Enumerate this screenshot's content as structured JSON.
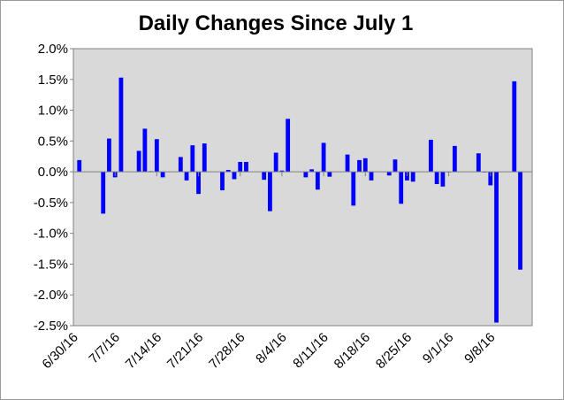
{
  "chart_data": {
    "type": "bar",
    "title": "Daily Changes Since July 1",
    "xlabel": "",
    "ylabel": "",
    "ylim": [
      -0.025,
      0.02
    ],
    "y_tick_labels": [
      "2.0%",
      "1.5%",
      "1.0%",
      "0.5%",
      "0.0%",
      "-0.5%",
      "-1.0%",
      "-1.5%",
      "-2.0%",
      "-2.5%"
    ],
    "x_tick_labels": [
      "6/30/16",
      "7/7/16",
      "7/14/16",
      "7/21/16",
      "7/28/16",
      "8/4/16",
      "8/11/16",
      "8/18/16",
      "8/25/16",
      "9/1/16",
      "9/8/16"
    ],
    "grid": false,
    "colors": {
      "bar": "#0000ff",
      "plot_bg": "#d9d9d9",
      "axis": "#808080"
    },
    "series": [
      {
        "points": [
          [
            "2016-07-01",
            0.0019
          ],
          [
            "2016-07-05",
            -0.0068
          ],
          [
            "2016-07-06",
            0.0054
          ],
          [
            "2016-07-07",
            -0.0009
          ],
          [
            "2016-07-08",
            0.0153
          ],
          [
            "2016-07-11",
            0.0034
          ],
          [
            "2016-07-12",
            0.007
          ],
          [
            "2016-07-13",
            0.0001
          ],
          [
            "2016-07-14",
            0.0053
          ],
          [
            "2016-07-15",
            -0.0009
          ],
          [
            "2016-07-18",
            0.0024
          ],
          [
            "2016-07-19",
            -0.0014
          ],
          [
            "2016-07-20",
            0.0043
          ],
          [
            "2016-07-21",
            -0.0036
          ],
          [
            "2016-07-22",
            0.0046
          ],
          [
            "2016-07-25",
            -0.003
          ],
          [
            "2016-07-26",
            0.0003
          ],
          [
            "2016-07-27",
            -0.0012
          ],
          [
            "2016-07-28",
            0.0016
          ],
          [
            "2016-07-29",
            0.0016
          ],
          [
            "2016-08-01",
            -0.0013
          ],
          [
            "2016-08-02",
            -0.0064
          ],
          [
            "2016-08-03",
            0.0031
          ],
          [
            "2016-08-04",
            0.0002
          ],
          [
            "2016-08-05",
            0.0086
          ],
          [
            "2016-08-08",
            -0.0009
          ],
          [
            "2016-08-09",
            0.0004
          ],
          [
            "2016-08-10",
            -0.0029
          ],
          [
            "2016-08-11",
            0.0047
          ],
          [
            "2016-08-12",
            -0.0008
          ],
          [
            "2016-08-15",
            0.0028
          ],
          [
            "2016-08-16",
            -0.0055
          ],
          [
            "2016-08-17",
            0.0019
          ],
          [
            "2016-08-18",
            0.0022
          ],
          [
            "2016-08-19",
            -0.0014
          ],
          [
            "2016-08-22",
            -0.0006
          ],
          [
            "2016-08-23",
            0.002
          ],
          [
            "2016-08-24",
            -0.0052
          ],
          [
            "2016-08-25",
            -0.0014
          ],
          [
            "2016-08-26",
            -0.0016
          ],
          [
            "2016-08-29",
            0.0052
          ],
          [
            "2016-08-30",
            -0.002
          ],
          [
            "2016-08-31",
            -0.0024
          ],
          [
            "2016-09-01",
            0.0
          ],
          [
            "2016-09-02",
            0.0042
          ],
          [
            "2016-09-06",
            0.003
          ],
          [
            "2016-09-07",
            -0.0001
          ],
          [
            "2016-09-08",
            -0.0022
          ],
          [
            "2016-09-09",
            -0.0245
          ],
          [
            "2016-09-12",
            0.0147
          ],
          [
            "2016-09-13",
            -0.0159
          ]
        ]
      }
    ]
  }
}
